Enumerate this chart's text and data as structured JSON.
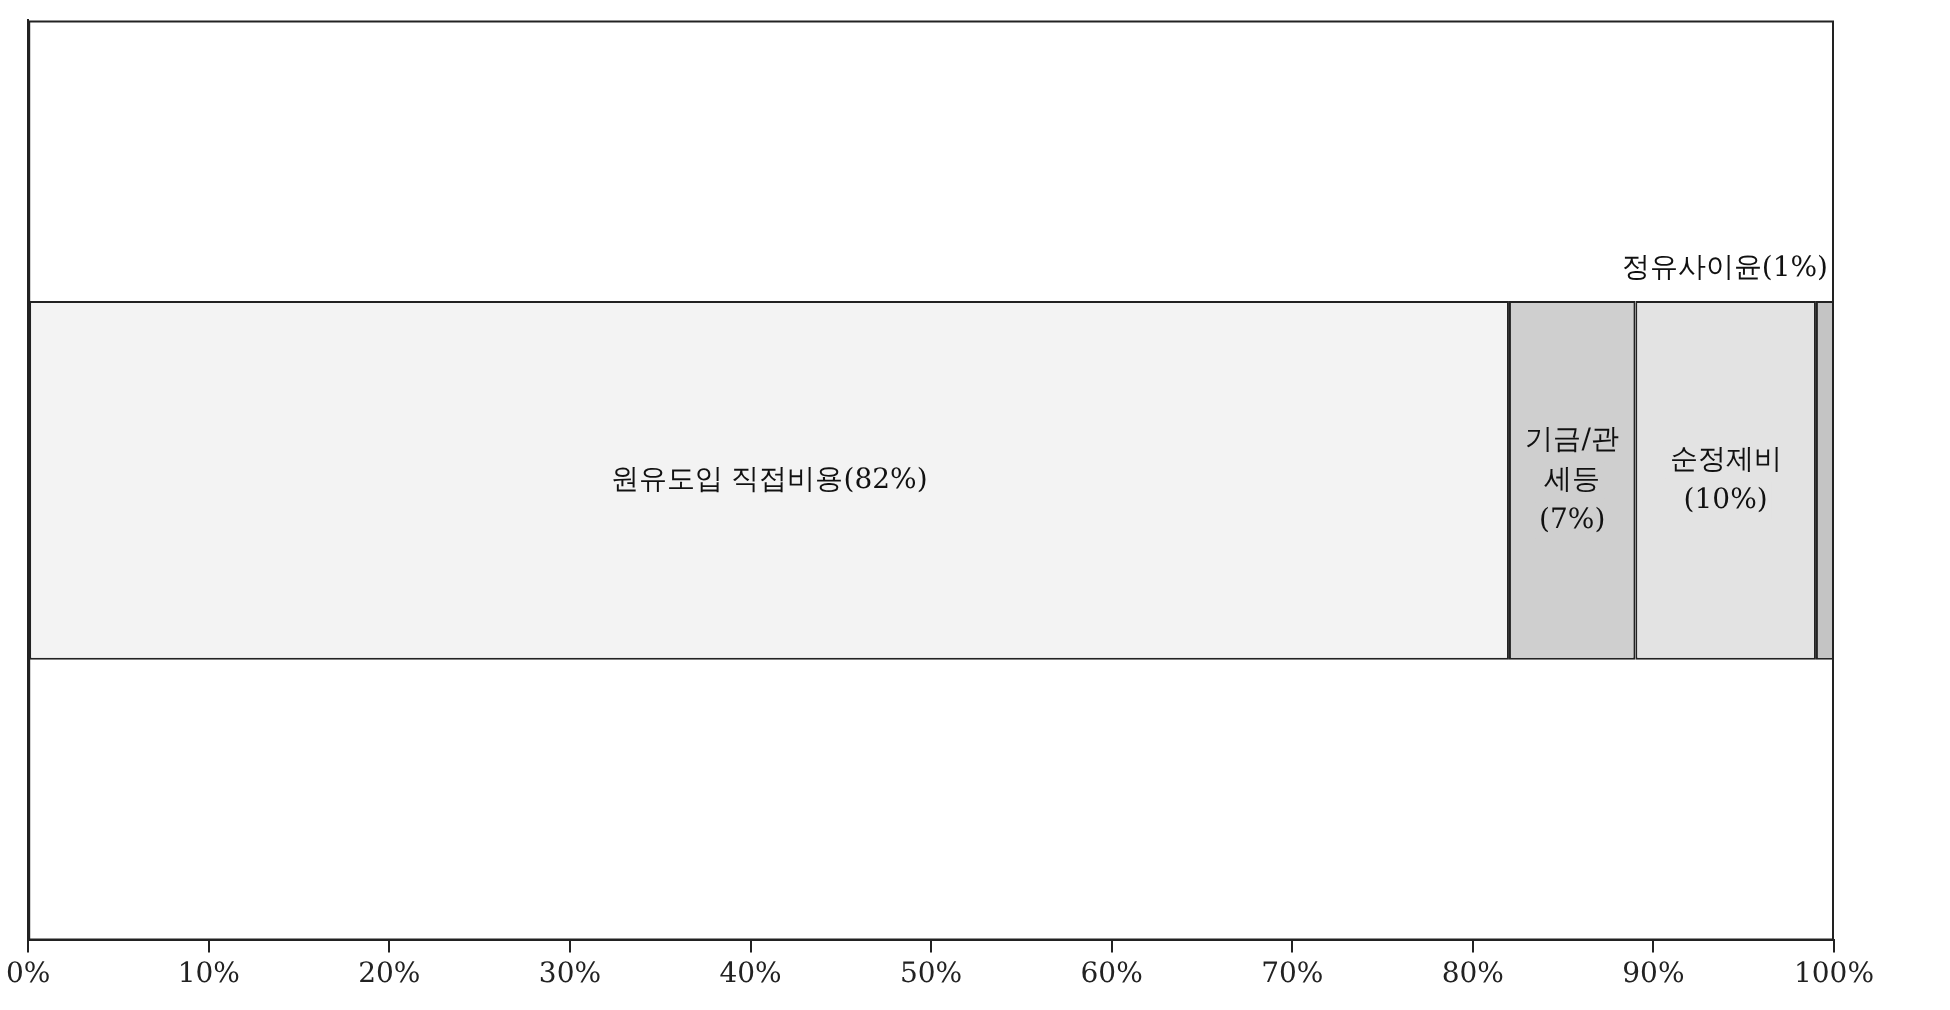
{
  "chart_data": {
    "type": "bar",
    "orientation": "horizontal",
    "stacked": true,
    "categories": [
      null
    ],
    "series": [
      {
        "name": "원유도입 직접비용",
        "color": "#f3f3f3",
        "values": [
          82
        ],
        "value_labels": [
          "(82%)"
        ]
      },
      {
        "name": "기금/관세등",
        "color": "#cfcfcf",
        "values": [
          7
        ],
        "value_labels": [
          "(7%)"
        ]
      },
      {
        "name": "순정제비",
        "color": "#e3e3e3",
        "values": [
          10
        ],
        "value_labels": [
          "(10%)"
        ]
      },
      {
        "name": "정유사이윤",
        "color": "#c4c4c4",
        "values": [
          1
        ],
        "value_labels": [
          "(1%)"
        ]
      }
    ],
    "xlim": [
      0,
      100
    ],
    "xticks": [
      {
        "value": 0,
        "label": "0%"
      },
      {
        "value": 10,
        "label": "10%"
      },
      {
        "value": 20,
        "label": "20%"
      },
      {
        "value": 30,
        "label": "30%"
      },
      {
        "value": 40,
        "label": "40%"
      },
      {
        "value": 50,
        "label": "50%"
      },
      {
        "value": 60,
        "label": "60%"
      },
      {
        "value": 70,
        "label": "70%"
      },
      {
        "value": 80,
        "label": "80%"
      },
      {
        "value": 90,
        "label": "90%"
      },
      {
        "value": 100,
        "label": "100%"
      }
    ],
    "grid": false,
    "legend": false
  }
}
